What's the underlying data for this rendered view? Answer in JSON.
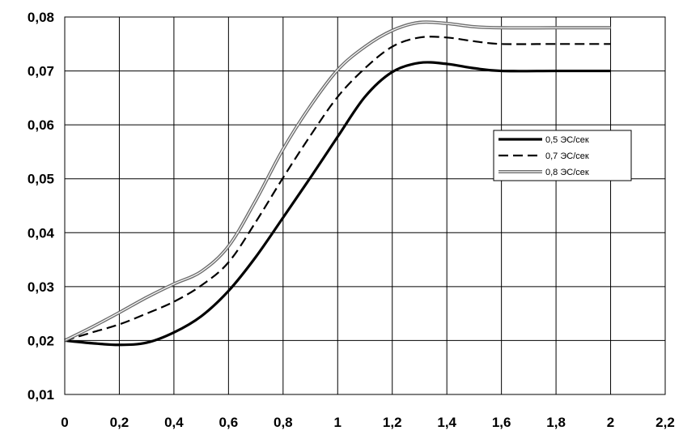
{
  "chart_data": {
    "type": "line",
    "xlim": [
      0,
      2.2
    ],
    "ylim": [
      0.01,
      0.08
    ],
    "x_ticks": [
      0,
      0.2,
      0.4,
      0.6,
      0.8,
      1,
      1.2,
      1.4,
      1.6,
      1.8,
      2,
      2.2
    ],
    "y_ticks": [
      0.01,
      0.02,
      0.03,
      0.04,
      0.05,
      0.06,
      0.07,
      0.08
    ],
    "x_tick_labels": [
      "0",
      "0,2",
      "0,4",
      "0,6",
      "0,8",
      "1",
      "1,2",
      "1,4",
      "1,6",
      "1,8",
      "2",
      "2,2"
    ],
    "y_tick_labels": [
      "0,01",
      "0,02",
      "0,03",
      "0,04",
      "0,05",
      "0,06",
      "0,07",
      "0,08"
    ],
    "grid": true,
    "legend_position": "right-middle",
    "x": [
      0,
      0.1,
      0.2,
      0.3,
      0.4,
      0.5,
      0.6,
      0.7,
      0.8,
      0.9,
      1.0,
      1.1,
      1.2,
      1.3,
      1.4,
      1.5,
      1.6,
      1.8,
      2.0
    ],
    "series": [
      {
        "name": "0,5 ЭС/сек",
        "style": "solid",
        "color": "#000000",
        "values": [
          0.02,
          0.0195,
          0.0192,
          0.0196,
          0.0215,
          0.0245,
          0.0292,
          0.0355,
          0.0428,
          0.0502,
          0.0578,
          0.0652,
          0.0698,
          0.0715,
          0.0713,
          0.0705,
          0.07,
          0.07,
          0.07
        ]
      },
      {
        "name": "0,7 ЭС/сек",
        "style": "dashed",
        "color": "#000000",
        "values": [
          0.02,
          0.0215,
          0.023,
          0.025,
          0.0272,
          0.0302,
          0.0345,
          0.042,
          0.0502,
          0.058,
          0.0652,
          0.0705,
          0.0745,
          0.0762,
          0.0762,
          0.0755,
          0.075,
          0.075,
          0.075
        ]
      },
      {
        "name": "0,8 ЭС/сек",
        "style": "double",
        "color": "#000000",
        "values": [
          0.02,
          0.0225,
          0.0252,
          0.028,
          0.0305,
          0.0328,
          0.0375,
          0.046,
          0.0555,
          0.0635,
          0.0702,
          0.0745,
          0.0775,
          0.079,
          0.0788,
          0.0782,
          0.078,
          0.078,
          0.078
        ]
      }
    ]
  }
}
